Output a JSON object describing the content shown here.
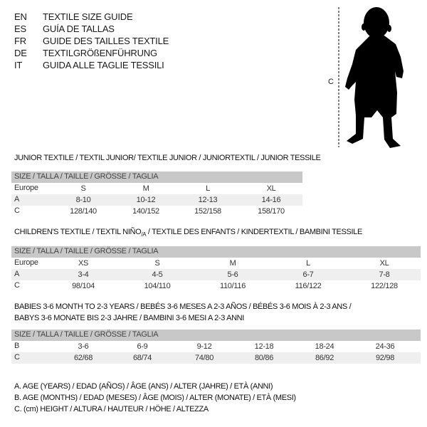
{
  "languages": [
    {
      "code": "EN",
      "title": "TEXTILE SIZE GUIDE"
    },
    {
      "code": "ES",
      "title": "GUÍA DE TALLAS"
    },
    {
      "code": "FR",
      "title": "GUIDE DES TAILLES TEXTILE"
    },
    {
      "code": "DE",
      "title": "TEXTILGRÖßENFÜHRUNG"
    },
    {
      "code": "IT",
      "title": "GUIDA ALLE TAGLIE TESSILI"
    }
  ],
  "figure": {
    "height_label": "C",
    "icon": "child-silhouette-icon"
  },
  "size_header": "SIZE / TALLA / TAILLE / GRÖSSE / TAGLIA",
  "junior": {
    "title": "JUNIOR TEXTILE / TEXTIL JUNIOR/ TEXTILE JUNIOR / JUNIORTEXTIL / JUNIOR TESSILE",
    "rows": [
      {
        "label": "Europe",
        "values": [
          "S",
          "M",
          "L",
          "XL"
        ]
      },
      {
        "label": "A",
        "values": [
          "8-10",
          "10-12",
          "12-13",
          "14-16"
        ]
      },
      {
        "label": "C",
        "values": [
          "128/140",
          "140/152",
          "152/158",
          "158/170"
        ]
      }
    ]
  },
  "children": {
    "title_pre": "CHILDREN'S TEXTILE / TEXTIL NIÑO",
    "title_sub": "/A",
    "title_post": " / TEXTILE DES ENFANTS / KINDERTEXTIL / BAMBINI TESSILE",
    "rows": [
      {
        "label": "Europe",
        "values": [
          "XS",
          "S",
          "M",
          "L",
          "XL"
        ]
      },
      {
        "label": "A",
        "values": [
          "3-4",
          "4-5",
          "5-6",
          "6-7",
          "7-8"
        ]
      },
      {
        "label": "C",
        "values": [
          "98/104",
          "104/110",
          "110/116",
          "116/122",
          "122/128"
        ]
      }
    ]
  },
  "babies": {
    "title_line1": "BABIES 3-6 MONTH TO 2-3 YEARS / BEBÉS 3-6 MESES A 2-3 AÑOS / BÉBÉS 3-6 MOIS À 2-3 ANS /",
    "title_line2": "BABYS 3-6 MONATE BIS 2-3 JAHRE / BAMBINI 3-6 MESI A 2-3 ANNI",
    "rows": [
      {
        "label": "B",
        "values": [
          "3-6",
          "6-9",
          "9-12",
          "12-18",
          "18-24",
          "24-36"
        ]
      },
      {
        "label": "C",
        "values": [
          "62/68",
          "68/74",
          "74/80",
          "80/86",
          "86/92",
          "92/98"
        ]
      }
    ]
  },
  "legend": [
    "A. AGE (YEARS) / EDAD (AÑOS) / ÂGE (ANS) / ALTER (JAHRE) / ETÀ (ANNI)",
    "B. AGE (MONTHS) / EDAD (MESES) / ÂGE (MOIS) / ALTER (MONATE) / ETÀ (MESI)",
    "C. (cm) HEIGHT / ALTURA / HAUTEUR / HÖHE / ALTEZZA"
  ]
}
